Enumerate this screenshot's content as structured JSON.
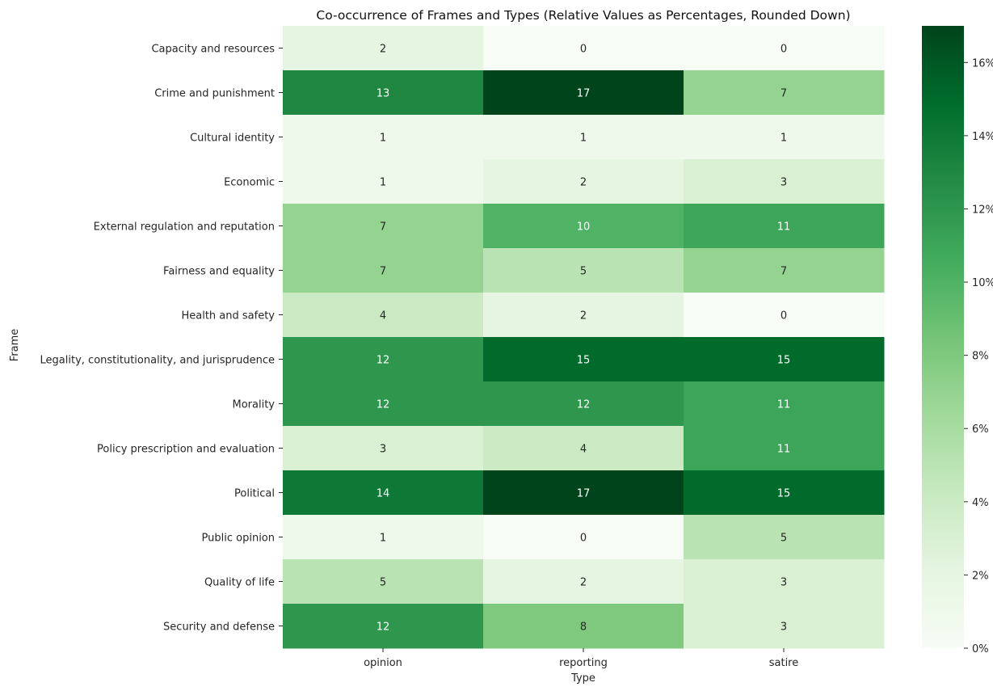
{
  "chart_data": {
    "type": "heatmap",
    "title": "Co-occurrence of Frames and Types (Relative Values as Percentages, Rounded Down)",
    "xlabel": "Type",
    "ylabel": "Frame",
    "x_categories": [
      "opinion",
      "reporting",
      "satire"
    ],
    "y_categories": [
      "Capacity and resources",
      "Crime and punishment",
      "Cultural identity",
      "Economic",
      "External regulation and reputation",
      "Fairness and equality",
      "Health and safety",
      "Legality, constitutionality, and jurisprudence",
      "Morality",
      "Policy prescription and evaluation",
      "Political",
      "Public opinion",
      "Quality of life",
      "Security and defense"
    ],
    "values": [
      [
        2,
        0,
        0
      ],
      [
        13,
        17,
        7
      ],
      [
        1,
        1,
        1
      ],
      [
        1,
        2,
        3
      ],
      [
        7,
        10,
        11
      ],
      [
        7,
        5,
        7
      ],
      [
        4,
        2,
        0
      ],
      [
        12,
        15,
        15
      ],
      [
        12,
        12,
        11
      ],
      [
        3,
        4,
        11
      ],
      [
        14,
        17,
        15
      ],
      [
        1,
        0,
        5
      ],
      [
        5,
        2,
        3
      ],
      [
        12,
        8,
        3
      ]
    ],
    "colormap": "Greens",
    "color_range": [
      0,
      17
    ],
    "colorbar": {
      "ticks": [
        0,
        2,
        4,
        6,
        8,
        10,
        12,
        14,
        16
      ],
      "tick_labels": [
        "0%",
        "2%",
        "4%",
        "6%",
        "8%",
        "10%",
        "12%",
        "14%",
        "16%"
      ]
    }
  }
}
